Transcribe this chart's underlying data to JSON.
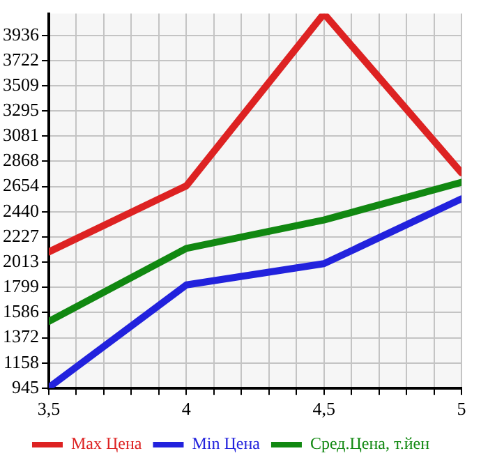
{
  "chart_data": {
    "type": "line",
    "x": [
      3.5,
      4,
      4.5,
      5
    ],
    "series": [
      {
        "name": "Max Цена",
        "color": "#dd2222",
        "values": [
          2100,
          2660,
          4120,
          2770
        ]
      },
      {
        "name": "Min Цена",
        "color": "#2222dd",
        "values": [
          950,
          1820,
          2000,
          2550
        ]
      },
      {
        "name": "Сред.Цена, т.йен",
        "color": "#118811",
        "values": [
          1510,
          2130,
          2370,
          2690
        ]
      }
    ],
    "xlim": [
      3.5,
      5
    ],
    "xticks": [
      {
        "value": 3.5,
        "label": "3,5"
      },
      {
        "value": 3.6,
        "label": null
      },
      {
        "value": 3.7,
        "label": null
      },
      {
        "value": 3.8,
        "label": null
      },
      {
        "value": 3.9,
        "label": null
      },
      4,
      {
        "value": 4.1,
        "label": null
      },
      {
        "value": 4.2,
        "label": null
      },
      {
        "value": 4.3,
        "label": null
      },
      {
        "value": 4.4,
        "label": null
      },
      {
        "value": 4.5,
        "label": "4,5"
      },
      {
        "value": 4.6,
        "label": null
      },
      {
        "value": 4.7,
        "label": null
      },
      {
        "value": 4.8,
        "label": null
      },
      {
        "value": 4.9,
        "label": null
      },
      5
    ],
    "ylim": [
      945,
      4120
    ],
    "yticks": [
      945,
      1158,
      1372,
      1586,
      1799,
      2013,
      2227,
      2440,
      2654,
      2868,
      3081,
      3295,
      3509,
      3722,
      3936
    ],
    "grid": true,
    "legend": "bottom",
    "marker": "none",
    "line_style": "solid"
  }
}
